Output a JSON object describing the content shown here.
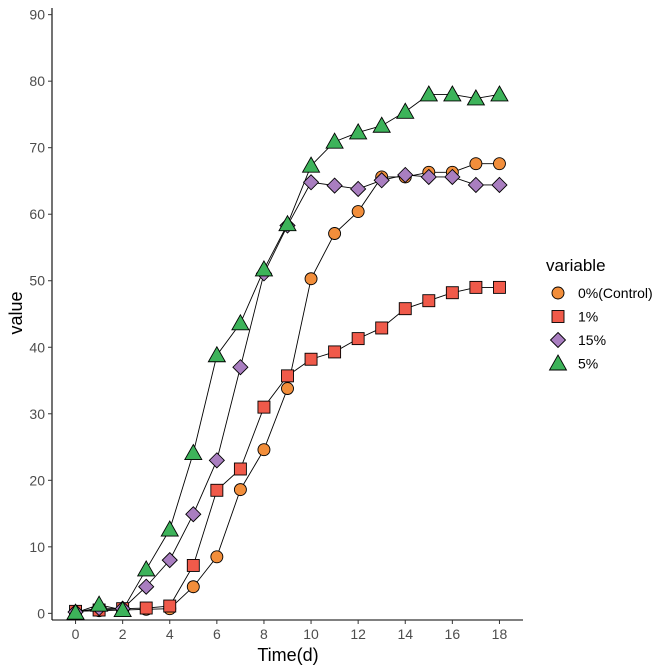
{
  "chart_data": {
    "type": "line",
    "title": "",
    "xlabel": "Time(d)",
    "ylabel": "value",
    "xlim": [
      -1,
      19
    ],
    "ylim": [
      -1,
      91
    ],
    "xticks": [
      0,
      2,
      4,
      6,
      8,
      10,
      12,
      14,
      16,
      18
    ],
    "yticks": [
      0,
      10,
      20,
      30,
      40,
      50,
      60,
      70,
      80,
      90
    ],
    "grid": false,
    "legend": {
      "title": "variable",
      "position": "right"
    },
    "series": [
      {
        "name": "0%(Control)",
        "marker": "circle",
        "color": "#f28e3b",
        "x": [
          0,
          1,
          2,
          3,
          4,
          5,
          6,
          7,
          8,
          9,
          10,
          11,
          12,
          13,
          14,
          15,
          16,
          17,
          18
        ],
        "y": [
          0.3,
          0.4,
          0.5,
          0.6,
          0.7,
          4.0,
          8.5,
          18.6,
          24.6,
          33.8,
          50.3,
          57.1,
          60.4,
          65.6,
          65.6,
          66.3,
          66.3,
          67.6,
          67.6
        ]
      },
      {
        "name": "1%",
        "marker": "square",
        "color": "#f05a4a",
        "x": [
          0,
          1,
          2,
          3,
          4,
          5,
          6,
          7,
          8,
          9,
          10,
          11,
          12,
          13,
          14,
          15,
          16,
          17,
          18
        ],
        "y": [
          0.3,
          0.5,
          0.7,
          0.8,
          1.1,
          7.2,
          18.5,
          21.7,
          31.0,
          35.7,
          38.2,
          39.3,
          41.3,
          42.9,
          45.8,
          47.0,
          48.2,
          49.0,
          49.0
        ]
      },
      {
        "name": "15%",
        "marker": "diamond",
        "color": "#a97ec0",
        "x": [
          0,
          1,
          2,
          3,
          4,
          5,
          6,
          7,
          8,
          9,
          10,
          11,
          12,
          13,
          14,
          15,
          16,
          17,
          18
        ],
        "y": [
          0.2,
          0.8,
          0.7,
          4.0,
          8.0,
          14.9,
          23.0,
          37.0,
          51.1,
          58.3,
          64.8,
          64.3,
          63.8,
          65.1,
          65.9,
          65.6,
          65.6,
          64.4,
          64.4
        ]
      },
      {
        "name": "5%",
        "marker": "triangle",
        "color": "#3db35a",
        "x": [
          0,
          1,
          2,
          3,
          4,
          5,
          6,
          7,
          8,
          9,
          10,
          11,
          12,
          13,
          14,
          15,
          16,
          17,
          18
        ],
        "y": [
          0.1,
          1.3,
          0.5,
          6.6,
          12.6,
          24.1,
          38.8,
          43.6,
          51.7,
          58.5,
          67.3,
          70.9,
          72.3,
          73.3,
          75.4,
          78.0,
          78.0,
          77.4,
          78.0
        ]
      }
    ]
  }
}
